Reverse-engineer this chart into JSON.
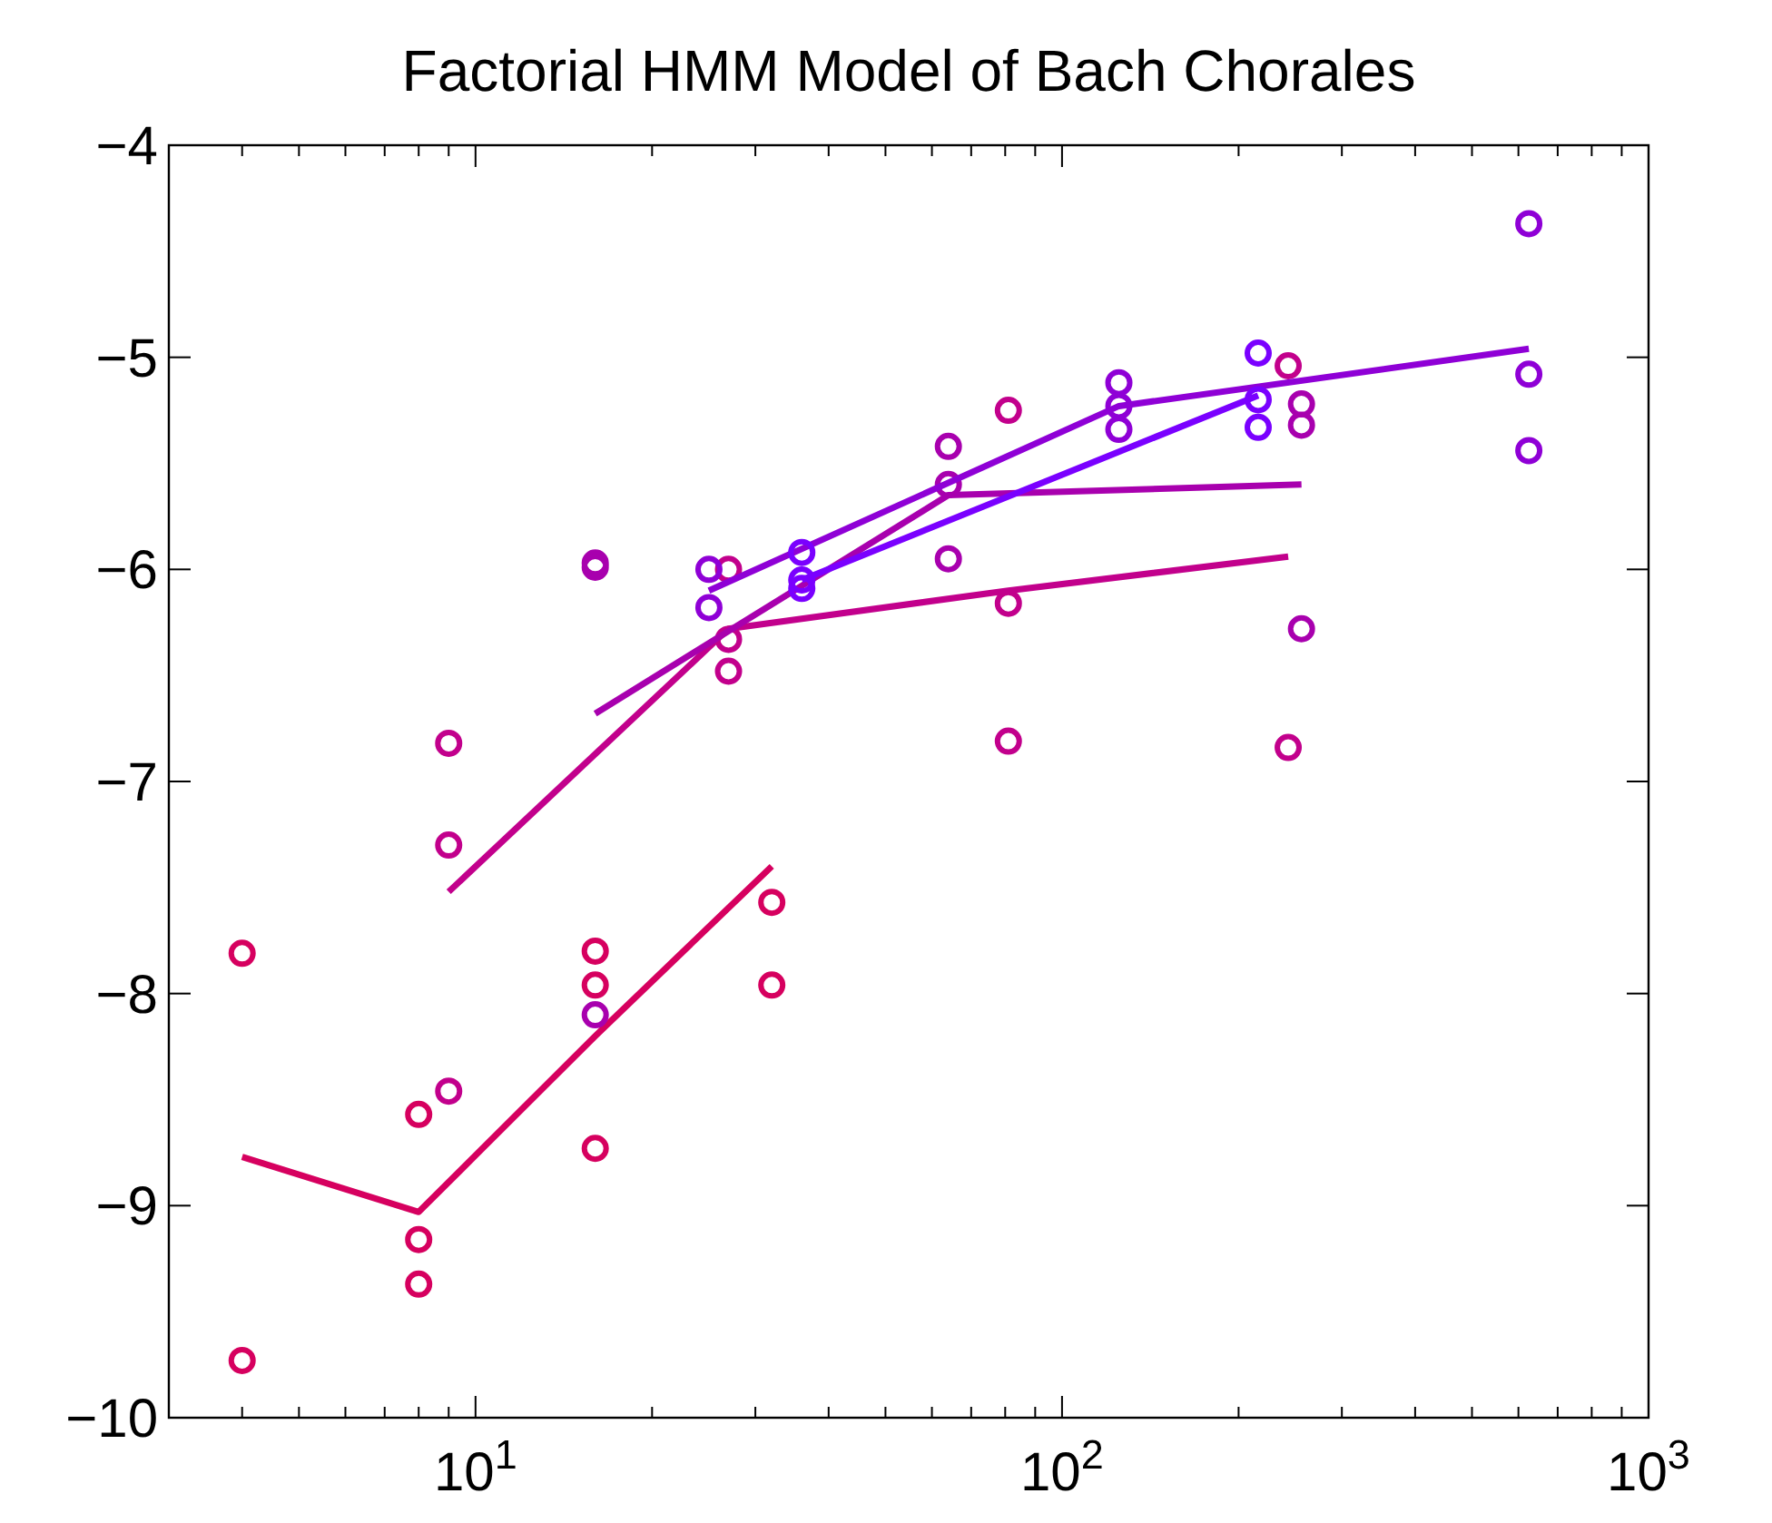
{
  "chart_data": {
    "type": "scatter",
    "title": "Factorial HMM Model of Bach Chorales",
    "log": "x",
    "grid": false,
    "marker": "circle",
    "xlim": [
      3,
      1000
    ],
    "ylim": [
      -10,
      -4
    ],
    "xticks": [
      {
        "value": 3,
        "label": null
      },
      {
        "value": 4,
        "label": null
      },
      {
        "value": 5,
        "label": null
      },
      {
        "value": 6,
        "label": null
      },
      {
        "value": 7,
        "label": null
      },
      {
        "value": 8,
        "label": null
      },
      {
        "value": 9,
        "label": null
      },
      {
        "value": 10,
        "label": "10$^{1}$"
      },
      {
        "value": 20,
        "label": null
      },
      {
        "value": 30,
        "label": null
      },
      {
        "value": 40,
        "label": null
      },
      {
        "value": 50,
        "label": null
      },
      {
        "value": 60,
        "label": null
      },
      {
        "value": 70,
        "label": null
      },
      {
        "value": 80,
        "label": null
      },
      {
        "value": 90,
        "label": null
      },
      {
        "value": 100,
        "label": "10$^{2}$"
      },
      {
        "value": 200,
        "label": null
      },
      {
        "value": 300,
        "label": null
      },
      {
        "value": 400,
        "label": null
      },
      {
        "value": 500,
        "label": null
      },
      {
        "value": 600,
        "label": null
      },
      {
        "value": 700,
        "label": null
      },
      {
        "value": 800,
        "label": null
      },
      {
        "value": 900,
        "label": null
      },
      {
        "value": 1000,
        "label": "10$^{3}$"
      }
    ],
    "yticks": [
      -10,
      -9,
      -8,
      -7,
      -6,
      -5,
      -4
    ],
    "series": [
      {
        "color": "#d6005f",
        "x": [
          4,
          4,
          8,
          8,
          8,
          16,
          16,
          16,
          32,
          32
        ],
        "values": [
          -7.81,
          -9.73,
          -8.57,
          -9.16,
          -9.37,
          -7.8,
          -7.96,
          -8.73,
          -7.57,
          -7.96
        ]
      },
      {
        "type": "line",
        "marker": "none",
        "color": "#d6005f",
        "x": [
          4,
          8,
          16,
          32
        ],
        "values": [
          -8.77,
          -9.03,
          -8.2,
          -7.4
        ]
      },
      {
        "color": "#c2008c",
        "x": [
          9,
          9,
          9,
          27,
          27,
          27,
          81,
          81,
          81,
          243,
          243
        ],
        "values": [
          -8.46,
          -6.82,
          -7.3,
          -6.0,
          -6.33,
          -6.48,
          -5.25,
          -6.16,
          -6.81,
          -5.04,
          -6.84
        ]
      },
      {
        "type": "line",
        "marker": "none",
        "color": "#c2008c",
        "x": [
          9,
          27,
          81,
          243
        ],
        "values": [
          -7.52,
          -6.28,
          -6.1,
          -5.94
        ]
      },
      {
        "color": "#a800ae",
        "x": [
          16,
          16,
          16,
          64,
          64,
          64,
          256,
          256,
          256
        ],
        "values": [
          -5.97,
          -5.99,
          -8.1,
          -5.42,
          -5.6,
          -5.95,
          -5.22,
          -5.32,
          -6.28
        ]
      },
      {
        "type": "line",
        "marker": "none",
        "color": "#a800ae",
        "x": [
          16,
          64,
          256
        ],
        "values": [
          -6.68,
          -5.65,
          -5.6
        ]
      },
      {
        "color": "#8f00d6",
        "x": [
          25,
          25,
          125,
          125,
          125,
          625,
          625,
          625
        ],
        "values": [
          -6.0,
          -6.18,
          -5.12,
          -5.23,
          -5.34,
          -4.37,
          -5.08,
          -5.44
        ]
      },
      {
        "type": "line",
        "marker": "none",
        "color": "#8f00d6",
        "x": [
          25,
          125,
          625
        ],
        "values": [
          -6.1,
          -5.23,
          -4.96
        ]
      },
      {
        "color": "#7a00ff",
        "x": [
          36,
          36,
          36,
          216,
          216,
          216
        ],
        "values": [
          -5.92,
          -6.05,
          -6.09,
          -4.98,
          -5.2,
          -5.33
        ]
      },
      {
        "type": "line",
        "marker": "none",
        "color": "#7a00ff",
        "x": [
          36,
          216
        ],
        "values": [
          -6.05,
          -5.18
        ]
      }
    ]
  }
}
